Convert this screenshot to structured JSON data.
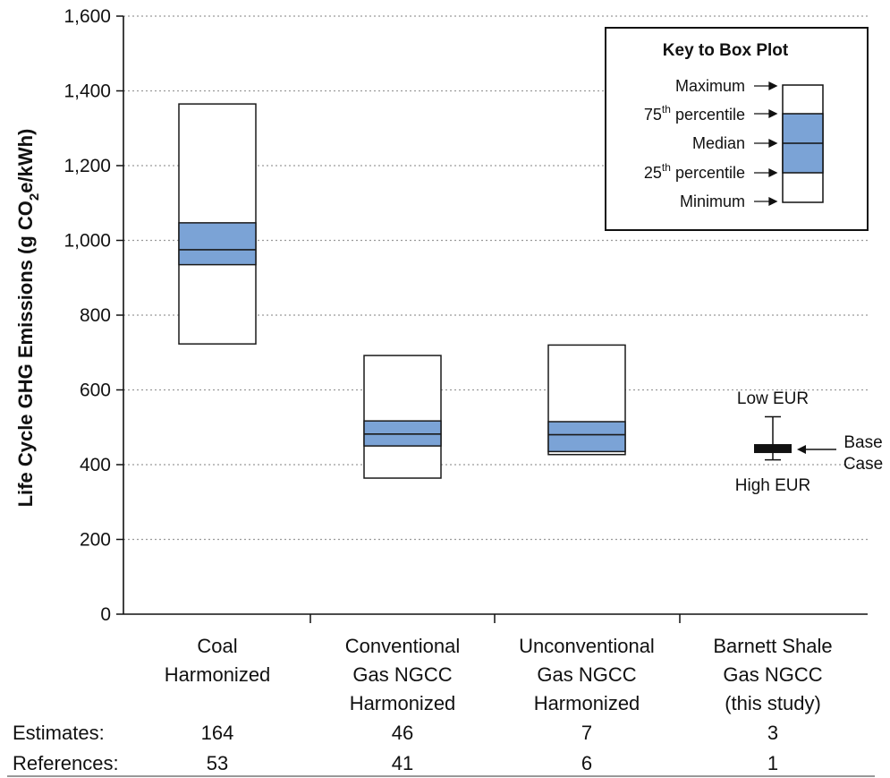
{
  "chart_data": {
    "type": "box",
    "ylabel": {
      "prefix": "Life Cycle GHG Emissions (g CO",
      "sub": "2",
      "suffix": "e/kWh)"
    },
    "ylim": [
      0,
      1600
    ],
    "yticks": [
      0,
      200,
      400,
      600,
      800,
      1000,
      1200,
      1400,
      1600
    ],
    "ytick_labels": [
      "0",
      "200",
      "400",
      "600",
      "800",
      "1,000",
      "1,200",
      "1,400",
      "1,600"
    ],
    "grid": "horizontal dotted",
    "categories": [
      {
        "lines": [
          "Coal",
          "Harmonized"
        ],
        "min": 723,
        "q1": 935,
        "median": 975,
        "q3": 1047,
        "max": 1365
      },
      {
        "lines": [
          "Conventional",
          "Gas NGCC",
          "Harmonized"
        ],
        "min": 364,
        "q1": 450,
        "median": 482,
        "q3": 517,
        "max": 692
      },
      {
        "lines": [
          "Unconventional",
          "Gas NGCC",
          "Harmonized"
        ],
        "min": 427,
        "q1": 435,
        "median": 480,
        "q3": 515,
        "max": 720
      },
      {
        "lines": [
          "Barnett Shale",
          "Gas NGCC",
          "(this study)"
        ],
        "type": "range",
        "low_eur": 528,
        "high_eur": 413,
        "base_case": 443
      }
    ],
    "range_annotations": {
      "low": "Low EUR",
      "high": "High EUR",
      "base": [
        "Base",
        "Case"
      ]
    },
    "key": {
      "title": "Key to Box Plot",
      "maximum": "Maximum",
      "p75": {
        "num": "75",
        "sup": "th",
        "rest": " percentile"
      },
      "median": "Median",
      "p25": {
        "num": "25",
        "sup": "th",
        "rest": " percentile"
      },
      "minimum": "Minimum"
    },
    "table": {
      "estimates_label": "Estimates:",
      "estimates": [
        "164",
        "46",
        "7",
        "3"
      ],
      "references_label": "References:",
      "references": [
        "53",
        "41",
        "6",
        "1"
      ]
    },
    "colors": {
      "iqr_fill": "#7BA3D6",
      "outline": "#1a1a1a",
      "grid": "#9a9a9a"
    }
  }
}
